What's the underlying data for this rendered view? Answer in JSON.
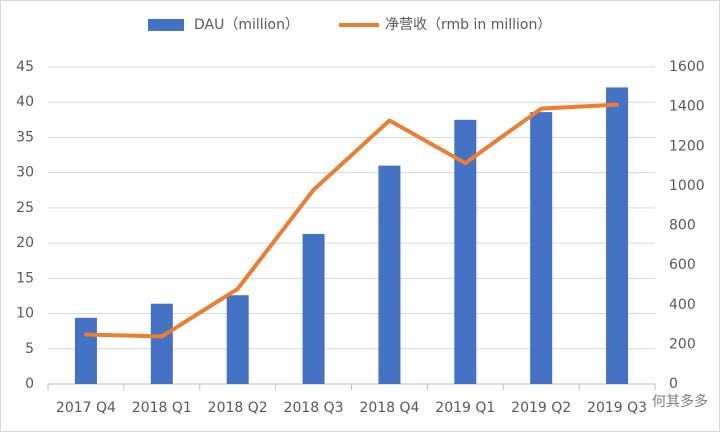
{
  "chart_data": {
    "type": "bar",
    "categories": [
      "2017 Q4",
      "2018 Q1",
      "2018 Q2",
      "2018 Q3",
      "2018 Q4",
      "2019 Q1",
      "2019 Q2",
      "2019 Q3"
    ],
    "series": [
      {
        "name": "DAU（million）",
        "type": "bar",
        "color": "#4472c4",
        "values": [
          9.4,
          11.4,
          12.6,
          21.3,
          31.0,
          37.5,
          38.6,
          42.1
        ]
      },
      {
        "name": "净营收（rmb in million）",
        "type": "line",
        "axis": "y2",
        "color": "#ed7d31",
        "values": [
          250,
          240,
          480,
          980,
          1330,
          1115,
          1390,
          1410
        ]
      }
    ],
    "ylim": [
      0,
      45
    ],
    "yticks": [
      0,
      5,
      10,
      15,
      20,
      25,
      30,
      35,
      40,
      45
    ],
    "y2lim": [
      0,
      1600
    ],
    "y2ticks": [
      0,
      200,
      400,
      600,
      800,
      1000,
      1200,
      1400,
      1600
    ],
    "grid": true,
    "legend": "top",
    "watermark": "何其多多"
  }
}
